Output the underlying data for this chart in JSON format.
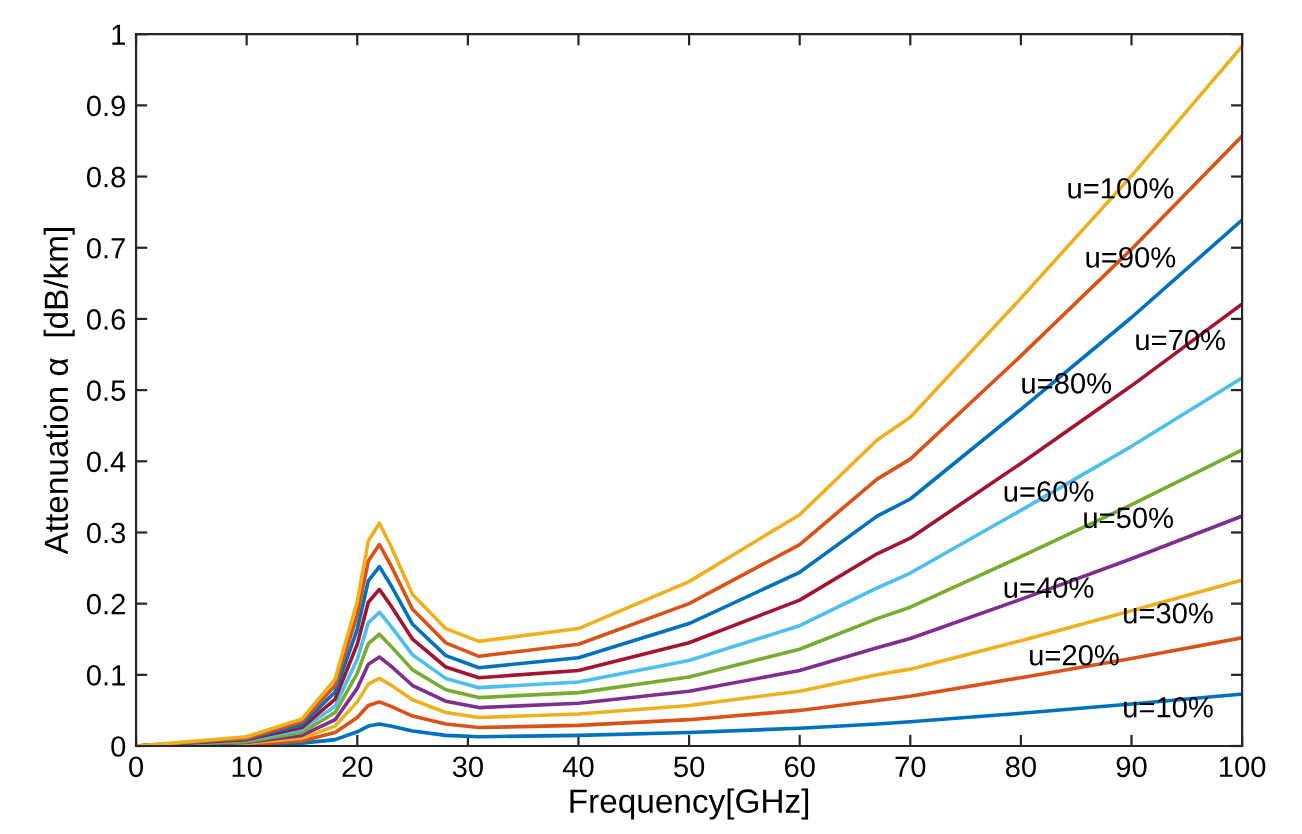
{
  "chart_data": {
    "type": "line",
    "xlabel": "Frequency[GHz]",
    "ylabel": "Attenuation α  [dB/km]",
    "x": [
      0,
      10,
      15,
      18,
      20,
      21,
      22,
      23,
      25,
      28,
      31,
      40,
      50,
      60,
      67,
      70,
      80,
      90,
      100
    ],
    "series": [
      {
        "color": "#0072bd",
        "values": [
          0,
          0.001,
          0.004,
          0.009,
          0.02,
          0.028,
          0.031,
          0.028,
          0.021,
          0.015,
          0.013,
          0.015,
          0.019,
          0.025,
          0.031,
          0.034,
          0.046,
          0.059,
          0.073
        ]
      },
      {
        "color": "#d95319",
        "values": [
          0,
          0.002,
          0.007,
          0.019,
          0.04,
          0.057,
          0.062,
          0.056,
          0.042,
          0.031,
          0.026,
          0.029,
          0.037,
          0.05,
          0.064,
          0.07,
          0.096,
          0.123,
          0.152
        ]
      },
      {
        "color": "#edb120",
        "values": [
          0,
          0.004,
          0.011,
          0.028,
          0.062,
          0.087,
          0.095,
          0.086,
          0.065,
          0.047,
          0.04,
          0.045,
          0.057,
          0.077,
          0.1,
          0.108,
          0.148,
          0.19,
          0.233
        ]
      },
      {
        "color": "#7e2f8e",
        "values": [
          0,
          0.005,
          0.015,
          0.037,
          0.081,
          0.115,
          0.125,
          0.113,
          0.085,
          0.063,
          0.054,
          0.06,
          0.077,
          0.106,
          0.138,
          0.151,
          0.206,
          0.263,
          0.323
        ]
      },
      {
        "color": "#77ac30",
        "values": [
          0,
          0.006,
          0.019,
          0.047,
          0.102,
          0.144,
          0.157,
          0.141,
          0.107,
          0.079,
          0.068,
          0.075,
          0.097,
          0.136,
          0.179,
          0.195,
          0.266,
          0.339,
          0.416
        ]
      },
      {
        "color": "#4dbeee",
        "values": [
          0,
          0.008,
          0.023,
          0.056,
          0.122,
          0.173,
          0.188,
          0.169,
          0.128,
          0.095,
          0.082,
          0.09,
          0.12,
          0.169,
          0.222,
          0.243,
          0.331,
          0.421,
          0.517
        ]
      },
      {
        "color": "#a2142f",
        "values": [
          0,
          0.009,
          0.026,
          0.066,
          0.143,
          0.202,
          0.22,
          0.198,
          0.15,
          0.111,
          0.096,
          0.106,
          0.145,
          0.205,
          0.27,
          0.292,
          0.397,
          0.506,
          0.621
        ]
      },
      {
        "color": "#0072bd",
        "values": [
          0,
          0.01,
          0.03,
          0.076,
          0.164,
          0.232,
          0.252,
          0.227,
          0.171,
          0.127,
          0.11,
          0.124,
          0.172,
          0.244,
          0.323,
          0.347,
          0.473,
          0.602,
          0.739
        ]
      },
      {
        "color": "#d95319",
        "values": [
          0,
          0.011,
          0.034,
          0.085,
          0.184,
          0.26,
          0.283,
          0.255,
          0.192,
          0.145,
          0.126,
          0.143,
          0.2,
          0.283,
          0.375,
          0.403,
          0.548,
          0.698,
          0.857
        ]
      },
      {
        "color": "#edb120",
        "values": [
          0,
          0.013,
          0.038,
          0.094,
          0.203,
          0.288,
          0.313,
          0.282,
          0.213,
          0.165,
          0.147,
          0.165,
          0.231,
          0.325,
          0.43,
          0.462,
          0.629,
          0.801,
          0.983
        ]
      }
    ],
    "annotations": [
      "u=100%",
      "u=90%",
      "u=70%",
      "u=80%",
      "u=60%",
      "u=50%",
      "u=40%",
      "u=30%",
      "u=20%",
      "u=10%"
    ],
    "xlim": [
      0,
      100
    ],
    "ylim": [
      0,
      1
    ],
    "xticks": [
      0,
      10,
      20,
      30,
      40,
      50,
      60,
      70,
      80,
      90,
      100
    ],
    "yticks": [
      0,
      0.1,
      0.2,
      0.3,
      0.4,
      0.5,
      0.6,
      0.7,
      0.8,
      0.9,
      1
    ],
    "grid": false,
    "legend": false
  }
}
